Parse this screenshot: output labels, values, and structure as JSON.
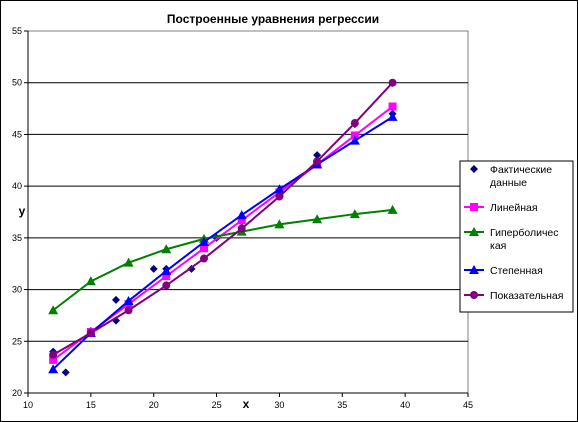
{
  "chart_data": {
    "type": "scatter",
    "title": "Построенные уравнения регрессии",
    "xlabel": "x",
    "ylabel": "y",
    "xlim": [
      10,
      45
    ],
    "ylim": [
      20,
      55
    ],
    "xticks": [
      10,
      15,
      20,
      25,
      30,
      35,
      40,
      45
    ],
    "yticks": [
      20,
      25,
      30,
      35,
      40,
      45,
      50,
      55
    ],
    "grid": "horizontal major",
    "legend_position": "right",
    "series": [
      {
        "name": "Фактические данные",
        "legend_lines": [
          "Фактические",
          "данные"
        ],
        "style": "markers",
        "marker": "diamond",
        "color": "#000080",
        "x": [
          12,
          13,
          15,
          17,
          17,
          20,
          21,
          23,
          24,
          25,
          27,
          30,
          33,
          36,
          39
        ],
        "y": [
          24,
          22,
          26,
          27,
          29,
          32,
          32,
          32,
          33,
          35,
          36,
          39,
          43,
          46,
          47
        ]
      },
      {
        "name": "Линейная",
        "legend_lines": [
          "Линейная"
        ],
        "style": "line+markers",
        "marker": "square",
        "color": "#ff00ff",
        "x": [
          12,
          15,
          18,
          21,
          24,
          27,
          30,
          33,
          36,
          39
        ],
        "y": [
          23.2,
          25.9,
          28.6,
          31.3,
          34.0,
          36.7,
          39.4,
          42.1,
          44.9,
          47.7
        ]
      },
      {
        "name": "Гиперболическая",
        "legend_lines": [
          "Гиперболичес",
          "кая"
        ],
        "style": "line+markers",
        "marker": "triangle",
        "color": "#008000",
        "x": [
          12,
          15,
          18,
          21,
          24,
          27,
          30,
          33,
          36,
          39
        ],
        "y": [
          28.0,
          30.8,
          32.6,
          33.9,
          34.9,
          35.6,
          36.3,
          36.8,
          37.3,
          37.7
        ]
      },
      {
        "name": "Степенная",
        "legend_lines": [
          "Степенная"
        ],
        "style": "line+markers",
        "marker": "triangle",
        "color": "#0000ff",
        "x": [
          12,
          15,
          18,
          21,
          24,
          27,
          30,
          33,
          36,
          39
        ],
        "y": [
          22.3,
          25.8,
          28.9,
          31.8,
          34.6,
          37.2,
          39.7,
          42.1,
          44.4,
          46.7
        ]
      },
      {
        "name": "Показательная",
        "legend_lines": [
          "Показательная"
        ],
        "style": "line+markers",
        "marker": "circle",
        "color": "#800080",
        "x": [
          12,
          15,
          18,
          21,
          24,
          27,
          30,
          33,
          36,
          39
        ],
        "y": [
          23.7,
          25.8,
          28.0,
          30.4,
          33.0,
          35.9,
          39.0,
          42.4,
          46.1,
          50.0
        ]
      }
    ]
  }
}
